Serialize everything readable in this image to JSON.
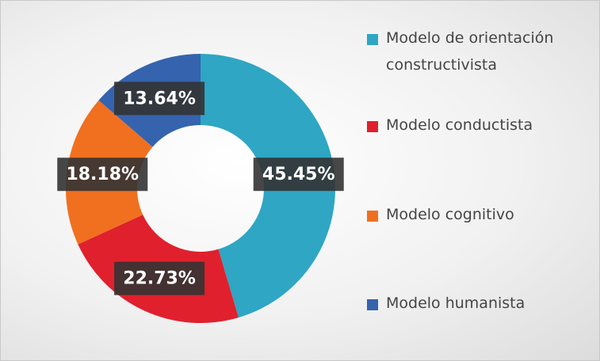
{
  "chart_data": {
    "type": "donut",
    "categories": [
      "Modelo de orientación constructivista",
      "Modelo conductista",
      "Modelo cognitivo",
      "Modelo humanista"
    ],
    "values": [
      45.45,
      22.73,
      18.18,
      13.64
    ],
    "value_labels": [
      "45.45%",
      "22.73%",
      "18.18%",
      "13.64%"
    ],
    "colors": [
      "#2ea6c4",
      "#e0202d",
      "#f07020",
      "#3563ae"
    ],
    "legend": "right"
  }
}
